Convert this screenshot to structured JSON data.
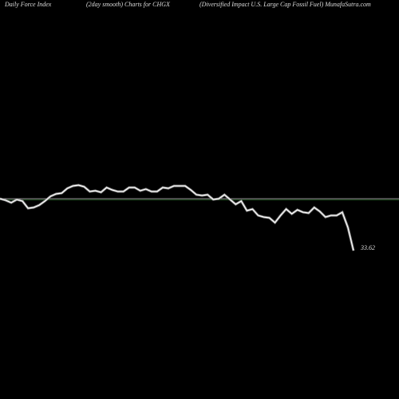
{
  "chart_data": {
    "type": "line",
    "title": "Daily Force  Index",
    "subtitle": "(2day smooth) Charts for CHGX",
    "description": "(Diversified Impact U.S. Large  Cap Fossil Fuel) MunafaSutra.com",
    "ylim": [
      30,
      60
    ],
    "series": [
      {
        "name": "CHGX",
        "color": "#ffffff",
        "values": [
          48.41,
          47.96,
          47.27,
          48.18,
          47.73,
          45.68,
          45.91,
          46.59,
          47.73,
          49.09,
          49.77,
          50.0,
          51.36,
          52.05,
          52.27,
          51.82,
          50.45,
          50.68,
          50.23,
          51.59,
          50.91,
          50.45,
          50.45,
          51.59,
          51.59,
          50.68,
          51.14,
          50.45,
          50.45,
          51.59,
          51.36,
          52.05,
          52.05,
          52.05,
          50.91,
          49.55,
          49.32,
          49.55,
          48.18,
          48.41,
          49.55,
          48.18,
          46.82,
          47.73,
          45.0,
          45.45,
          43.64,
          43.18,
          42.96,
          41.59,
          43.64,
          45.45,
          44.09,
          45.23,
          44.55,
          44.32,
          45.91,
          44.77,
          43.18,
          43.64,
          43.64,
          44.55,
          40.23,
          33.62
        ]
      }
    ]
  }
}
